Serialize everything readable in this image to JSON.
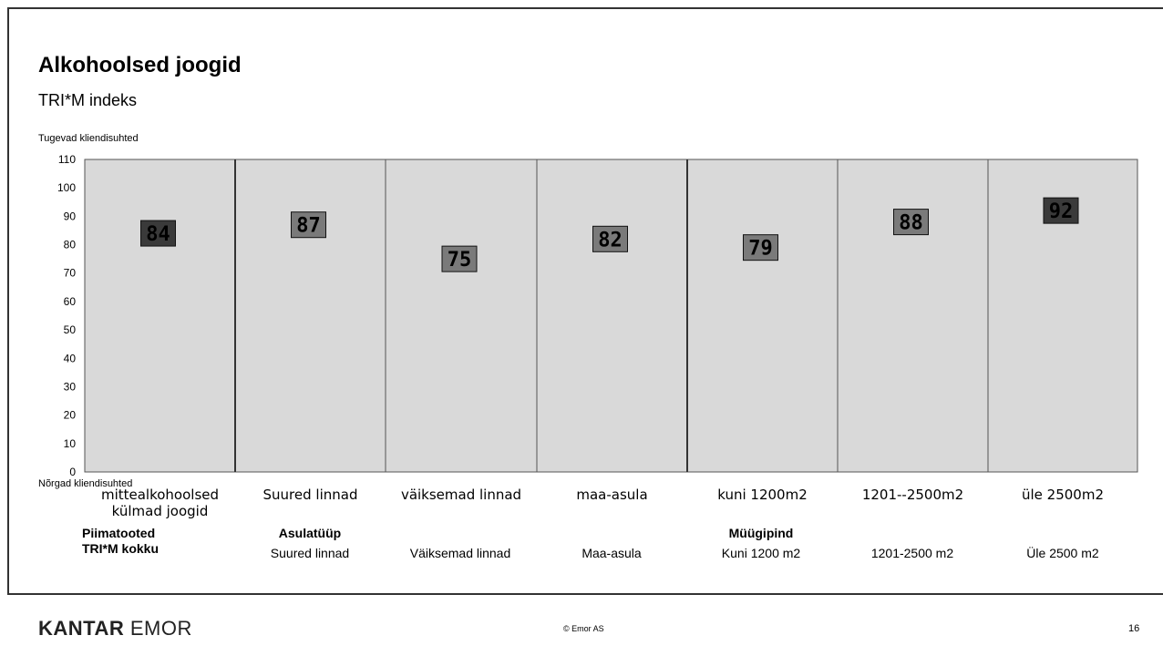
{
  "slide": {
    "title": "Alkohoolsed joogid",
    "subtitle": "TRI*M indeks",
    "y_top_label": "Tugevad kliendisuhted",
    "y_bottom_label": "Nõrgad kliendisuhted",
    "group_labels": [
      "Piimatooted TRI*M kokku",
      "Asulatüüp",
      "Müügipind"
    ],
    "sub_labels": [
      "Suured linnad",
      "Väiksemad linnad",
      "Maa-asula",
      "Kuni 1200 m2",
      "1201-2500 m2",
      "Üle 2500 m2"
    ],
    "logo_bold": "KANTAR",
    "logo_regular": "EMOR",
    "copyright": "© Emor AS",
    "page_number": "16"
  },
  "chart_data": {
    "type": "scatter",
    "title": "",
    "categories": [
      "mittealkohoolsed külmad joogid",
      "Suured linnad",
      "väiksemad linnad",
      "maa-asula",
      "kuni 1200m2",
      "1201--2500m2",
      "üle 2500m2"
    ],
    "values": [
      84,
      87,
      75,
      82,
      79,
      88,
      92
    ],
    "ylim": [
      0,
      110
    ],
    "yticks": [
      0,
      10,
      20,
      30,
      40,
      50,
      60,
      70,
      80,
      90,
      100,
      110
    ],
    "grid": false,
    "marker_colors": [
      "#3a3a3a",
      "#7a7a7a",
      "#7a7a7a",
      "#7a7a7a",
      "#7a7a7a",
      "#7a7a7a",
      "#3a3a3a"
    ],
    "panel_color": "#d9d9d9"
  }
}
